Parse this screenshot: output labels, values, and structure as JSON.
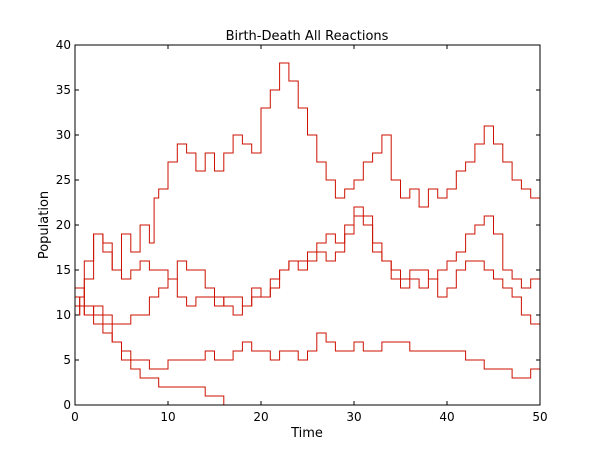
{
  "chart_data": {
    "type": "line",
    "title": "Birth-Death All Reactions",
    "xlabel": "Time",
    "ylabel": "Population",
    "xlim": [
      0,
      50
    ],
    "ylim": [
      0,
      40
    ],
    "xticks": [
      "0",
      "10",
      "20",
      "30",
      "40",
      "50"
    ],
    "yticks": [
      "0",
      "5",
      "10",
      "15",
      "20",
      "25",
      "30",
      "35",
      "40"
    ],
    "grid": false,
    "legend": "none",
    "line_style": "step",
    "series_color": "#cc1100",
    "series": [
      {
        "points": [
          [
            0,
            10
          ],
          [
            0.5,
            12
          ],
          [
            1,
            14
          ],
          [
            2,
            19
          ],
          [
            3,
            18
          ],
          [
            4,
            15
          ],
          [
            5,
            19
          ],
          [
            6,
            17
          ],
          [
            7,
            20
          ],
          [
            8,
            18
          ],
          [
            8.5,
            23
          ],
          [
            9,
            24
          ],
          [
            10,
            27
          ],
          [
            11,
            29
          ],
          [
            12,
            28
          ],
          [
            13,
            26
          ],
          [
            14,
            28
          ],
          [
            15,
            26
          ],
          [
            16,
            28
          ],
          [
            17,
            30
          ],
          [
            18,
            29
          ],
          [
            19,
            28
          ],
          [
            20,
            33
          ],
          [
            21,
            35
          ],
          [
            22,
            38
          ],
          [
            23,
            36
          ],
          [
            24,
            33
          ],
          [
            25,
            30
          ],
          [
            26,
            27
          ],
          [
            27,
            25
          ],
          [
            28,
            23
          ],
          [
            29,
            24
          ],
          [
            30,
            25
          ],
          [
            31,
            27
          ],
          [
            32,
            28
          ],
          [
            33,
            30
          ],
          [
            34,
            25
          ],
          [
            35,
            23
          ],
          [
            36,
            24
          ],
          [
            37,
            22
          ],
          [
            38,
            24
          ],
          [
            39,
            23
          ],
          [
            40,
            24
          ],
          [
            41,
            26
          ],
          [
            42,
            27
          ],
          [
            43,
            29
          ],
          [
            44,
            31
          ],
          [
            45,
            29
          ],
          [
            46,
            27
          ],
          [
            47,
            25
          ],
          [
            48,
            24
          ],
          [
            49,
            23
          ],
          [
            50,
            22
          ]
        ]
      },
      {
        "points": [
          [
            0,
            10
          ],
          [
            0.5,
            12
          ],
          [
            1,
            16
          ],
          [
            2,
            19
          ],
          [
            3,
            17
          ],
          [
            4,
            15
          ],
          [
            5,
            14
          ],
          [
            6,
            15
          ],
          [
            7,
            16
          ],
          [
            8,
            15
          ],
          [
            9,
            15
          ],
          [
            10,
            14
          ],
          [
            11,
            16
          ],
          [
            12,
            15
          ],
          [
            13,
            15
          ],
          [
            14,
            13
          ],
          [
            15,
            11
          ],
          [
            16,
            12
          ],
          [
            17,
            12
          ],
          [
            18,
            11
          ],
          [
            19,
            13
          ],
          [
            20,
            12
          ],
          [
            21,
            13
          ],
          [
            22,
            15
          ],
          [
            23,
            16
          ],
          [
            24,
            16
          ],
          [
            25,
            17
          ],
          [
            26,
            18
          ],
          [
            27,
            19
          ],
          [
            28,
            18
          ],
          [
            29,
            20
          ],
          [
            30,
            22
          ],
          [
            31,
            21
          ],
          [
            32,
            18
          ],
          [
            33,
            16
          ],
          [
            34,
            15
          ],
          [
            35,
            14
          ],
          [
            36,
            15
          ],
          [
            37,
            15
          ],
          [
            38,
            14
          ],
          [
            39,
            15
          ],
          [
            40,
            16
          ],
          [
            41,
            17
          ],
          [
            42,
            19
          ],
          [
            43,
            20
          ],
          [
            44,
            21
          ],
          [
            45,
            19
          ],
          [
            46,
            15
          ],
          [
            47,
            14
          ],
          [
            48,
            13
          ],
          [
            49,
            14
          ],
          [
            50,
            15
          ]
        ]
      },
      {
        "points": [
          [
            0,
            13
          ],
          [
            1,
            11
          ],
          [
            2,
            10
          ],
          [
            3,
            9
          ],
          [
            4,
            7
          ],
          [
            5,
            6
          ],
          [
            6,
            5
          ],
          [
            7,
            5
          ],
          [
            8,
            4
          ],
          [
            9,
            4
          ],
          [
            10,
            5
          ],
          [
            11,
            5
          ],
          [
            12,
            5
          ],
          [
            13,
            5
          ],
          [
            14,
            6
          ],
          [
            15,
            5
          ],
          [
            16,
            5
          ],
          [
            17,
            6
          ],
          [
            18,
            7
          ],
          [
            19,
            6
          ],
          [
            20,
            6
          ],
          [
            21,
            5
          ],
          [
            22,
            6
          ],
          [
            23,
            6
          ],
          [
            24,
            5
          ],
          [
            25,
            6
          ],
          [
            26,
            8
          ],
          [
            27,
            7
          ],
          [
            28,
            6
          ],
          [
            29,
            6
          ],
          [
            30,
            7
          ],
          [
            31,
            6
          ],
          [
            32,
            6
          ],
          [
            33,
            7
          ],
          [
            34,
            7
          ],
          [
            35,
            7
          ],
          [
            36,
            6
          ],
          [
            37,
            6
          ],
          [
            38,
            6
          ],
          [
            39,
            6
          ],
          [
            40,
            6
          ],
          [
            41,
            6
          ],
          [
            42,
            5
          ],
          [
            43,
            5
          ],
          [
            44,
            4
          ],
          [
            45,
            4
          ],
          [
            46,
            4
          ],
          [
            47,
            3
          ],
          [
            48,
            3
          ],
          [
            49,
            4
          ],
          [
            50,
            4
          ]
        ]
      },
      {
        "points": [
          [
            0,
            12
          ],
          [
            1,
            10
          ],
          [
            2,
            9
          ],
          [
            3,
            8
          ],
          [
            4,
            7
          ],
          [
            5,
            5
          ],
          [
            6,
            4
          ],
          [
            7,
            3
          ],
          [
            8,
            3
          ],
          [
            9,
            2
          ],
          [
            10,
            2
          ],
          [
            11,
            2
          ],
          [
            12,
            2
          ],
          [
            13,
            2
          ],
          [
            14,
            1
          ],
          [
            15,
            1
          ],
          [
            16,
            0
          ]
        ]
      },
      {
        "points": [
          [
            0,
            11
          ],
          [
            1,
            10
          ],
          [
            2,
            11
          ],
          [
            3,
            10
          ],
          [
            4,
            9
          ],
          [
            5,
            9
          ],
          [
            6,
            10
          ],
          [
            7,
            10
          ],
          [
            8,
            12
          ],
          [
            9,
            13
          ],
          [
            10,
            14
          ],
          [
            11,
            12
          ],
          [
            12,
            11
          ],
          [
            13,
            12
          ],
          [
            14,
            12
          ],
          [
            15,
            12
          ],
          [
            16,
            11
          ],
          [
            17,
            10
          ],
          [
            18,
            11
          ],
          [
            19,
            12
          ],
          [
            20,
            12
          ],
          [
            21,
            14
          ],
          [
            22,
            15
          ],
          [
            23,
            16
          ],
          [
            24,
            15
          ],
          [
            25,
            16
          ],
          [
            26,
            17
          ],
          [
            27,
            16
          ],
          [
            28,
            17
          ],
          [
            29,
            19
          ],
          [
            30,
            21
          ],
          [
            31,
            20
          ],
          [
            32,
            17
          ],
          [
            33,
            16
          ],
          [
            34,
            14
          ],
          [
            35,
            13
          ],
          [
            36,
            14
          ],
          [
            37,
            13
          ],
          [
            38,
            14
          ],
          [
            39,
            12
          ],
          [
            40,
            13
          ],
          [
            41,
            15
          ],
          [
            42,
            16
          ],
          [
            43,
            16
          ],
          [
            44,
            15
          ],
          [
            45,
            14
          ],
          [
            46,
            13
          ],
          [
            47,
            12
          ],
          [
            48,
            10
          ],
          [
            49,
            9
          ],
          [
            50,
            8
          ]
        ]
      }
    ]
  }
}
